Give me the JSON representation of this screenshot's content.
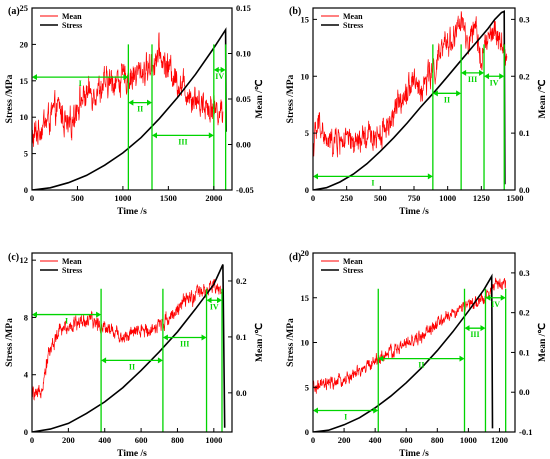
{
  "figure": {
    "style": {
      "mean_color": "#ff0000",
      "stress_color": "#000000",
      "marker_color": "#00d400"
    },
    "legend": {
      "mean": "Mean",
      "stress": "Stress"
    }
  },
  "chart_data": [
    {
      "panel": "(a)",
      "type": "line",
      "xlabel": "Time /s",
      "ylabel_left": "Stress /MPa",
      "ylabel_right": "Mean /℃",
      "xlim": [
        0,
        2200
      ],
      "ylim_left": [
        0,
        25
      ],
      "ylim_right": [
        -0.05,
        0.15
      ],
      "xticks": [
        0,
        500,
        1000,
        1500,
        2000
      ],
      "yticks_left": [
        0,
        5,
        10,
        15,
        20,
        25
      ],
      "yticks_right": [
        -0.05,
        0.0,
        0.05,
        0.1,
        0.15
      ],
      "yticks_right_labels": [
        "-0.05",
        "0.00",
        "0.05",
        "0.10",
        "0.15"
      ],
      "legend_position": "top-left",
      "series": [
        {
          "name": "Mean",
          "axis": "right",
          "x": [
            0,
            100,
            200,
            300,
            400,
            500,
            600,
            700,
            800,
            900,
            1000,
            1100,
            1200,
            1300,
            1400,
            1450,
            1500,
            1600,
            1700,
            1800,
            1900,
            2000,
            2100
          ],
          "y": [
            0.005,
            0.02,
            0.03,
            0.04,
            0.015,
            0.045,
            0.055,
            0.06,
            0.065,
            0.07,
            0.072,
            0.075,
            0.08,
            0.085,
            0.1,
            0.09,
            0.085,
            0.07,
            0.06,
            0.05,
            0.045,
            0.04,
            0.035
          ],
          "noise": 0.012
        },
        {
          "name": "Stress",
          "axis": "left",
          "x": [
            0,
            200,
            400,
            600,
            800,
            1000,
            1200,
            1400,
            1600,
            1800,
            2000,
            2130,
            2135
          ],
          "y": [
            0,
            0.3,
            1.0,
            2.0,
            3.4,
            5.1,
            7.2,
            9.8,
            12.7,
            15.9,
            19.5,
            22.0,
            8.0
          ]
        }
      ],
      "markers": [
        {
          "x": 1060,
          "stage": "I",
          "span": [
            0,
            1060
          ],
          "level": 15.5
        },
        {
          "x": 1320,
          "stage": "II",
          "span": [
            1060,
            1320
          ],
          "level": 12.0
        },
        {
          "x": 2000,
          "stage": "III",
          "span": [
            1320,
            2000
          ],
          "level": 7.5
        },
        {
          "x": 2130,
          "stage": "IV",
          "span": [
            2000,
            2130
          ],
          "level": 16.5
        }
      ]
    },
    {
      "panel": "(b)",
      "type": "line",
      "xlabel": "Time /s",
      "ylabel_left": "Stress /MPa",
      "ylabel_right": "Mean /℃",
      "xlim": [
        0,
        1500
      ],
      "ylim_left": [
        0,
        16
      ],
      "ylim_right": [
        0,
        0.32
      ],
      "xticks": [
        0,
        250,
        500,
        750,
        1000,
        1250,
        1500
      ],
      "yticks_left": [
        0,
        5,
        10,
        15
      ],
      "yticks_right": [
        0.0,
        0.1,
        0.2,
        0.3
      ],
      "yticks_right_labels": [
        "0.0",
        "0.1",
        "0.2",
        "0.3"
      ],
      "legend_position": "top-left",
      "series": [
        {
          "name": "Mean",
          "axis": "right",
          "x": [
            0,
            50,
            100,
            200,
            300,
            400,
            500,
            600,
            650,
            700,
            750,
            800,
            850,
            900,
            950,
            1000,
            1050,
            1100,
            1150,
            1200,
            1250,
            1300,
            1350,
            1400,
            1440
          ],
          "y": [
            0.08,
            0.12,
            0.08,
            0.09,
            0.08,
            0.09,
            0.1,
            0.13,
            0.16,
            0.18,
            0.2,
            0.17,
            0.2,
            0.21,
            0.24,
            0.26,
            0.27,
            0.3,
            0.25,
            0.28,
            0.24,
            0.26,
            0.28,
            0.25,
            0.23
          ],
          "noise": 0.018
        },
        {
          "name": "Stress",
          "axis": "left",
          "x": [
            0,
            100,
            200,
            300,
            400,
            500,
            600,
            700,
            800,
            900,
            1000,
            1100,
            1200,
            1300,
            1350,
            1400,
            1420,
            1425
          ],
          "y": [
            0,
            0.2,
            0.7,
            1.4,
            2.3,
            3.4,
            4.6,
            5.9,
            7.3,
            8.6,
            10.0,
            11.4,
            12.8,
            14.2,
            15.0,
            15.6,
            15.7,
            0.5
          ]
        }
      ],
      "markers": [
        {
          "x": 890,
          "stage": "I",
          "span": [
            0,
            890
          ],
          "level": 1.2
        },
        {
          "x": 1100,
          "stage": "II",
          "span": [
            890,
            1100
          ],
          "level": 8.5
        },
        {
          "x": 1270,
          "stage": "III",
          "span": [
            1100,
            1270
          ],
          "level": 10.3
        },
        {
          "x": 1420,
          "stage": "IV",
          "span": [
            1270,
            1420
          ],
          "level": 10.0
        }
      ]
    },
    {
      "panel": "(c)",
      "type": "line",
      "xlabel": "Time /s",
      "ylabel_left": "Stress /MPa",
      "ylabel_right": "Mean /℃",
      "xlim": [
        0,
        1100
      ],
      "ylim_left": [
        0,
        12.5
      ],
      "ylim_right": [
        -0.07,
        0.25
      ],
      "xticks": [
        0,
        200,
        400,
        600,
        800,
        1000
      ],
      "yticks_left": [
        0,
        4,
        8,
        12
      ],
      "yticks_right": [
        0.0,
        0.1,
        0.2
      ],
      "yticks_right_labels": [
        "0.0",
        "0.1",
        "0.2"
      ],
      "legend_position": "top-left",
      "series": [
        {
          "name": "Mean",
          "axis": "right",
          "x": [
            0,
            30,
            60,
            90,
            120,
            150,
            200,
            250,
            300,
            350,
            400,
            450,
            500,
            550,
            600,
            650,
            700,
            750,
            800,
            850,
            900,
            950,
            1000,
            1040
          ],
          "y": [
            0.0,
            -0.01,
            0.02,
            0.07,
            0.09,
            0.11,
            0.12,
            0.125,
            0.13,
            0.125,
            0.12,
            0.11,
            0.1,
            0.105,
            0.11,
            0.115,
            0.12,
            0.135,
            0.15,
            0.165,
            0.175,
            0.18,
            0.19,
            0.18
          ],
          "noise": 0.01
        },
        {
          "name": "Stress",
          "axis": "left",
          "x": [
            0,
            100,
            200,
            300,
            400,
            500,
            600,
            700,
            800,
            900,
            1000,
            1050,
            1060
          ],
          "y": [
            0,
            0.2,
            0.6,
            1.3,
            2.1,
            3.1,
            4.3,
            5.6,
            7.0,
            8.6,
            10.3,
            11.7,
            0.3
          ]
        }
      ],
      "markers": [
        {
          "x": 380,
          "stage": "I",
          "span": [
            0,
            380
          ],
          "level": 8.2
        },
        {
          "x": 720,
          "stage": "II",
          "span": [
            380,
            720
          ],
          "level": 5.0
        },
        {
          "x": 960,
          "stage": "III",
          "span": [
            720,
            960
          ],
          "level": 6.6
        },
        {
          "x": 1045,
          "stage": "IV",
          "span": [
            960,
            1045
          ],
          "level": 9.2
        }
      ]
    },
    {
      "panel": "(d)",
      "type": "line",
      "xlabel": "Time /s",
      "ylabel_left": "Stress /MPa",
      "ylabel_right": "Mean /℃",
      "xlim": [
        0,
        1300
      ],
      "ylim_left": [
        0,
        20
      ],
      "ylim_right": [
        -0.1,
        0.35
      ],
      "xticks": [
        0,
        200,
        400,
        600,
        800,
        1000,
        1200
      ],
      "yticks_left": [
        0,
        5,
        10,
        15,
        20
      ],
      "yticks_right": [
        -0.1,
        0.0,
        0.1,
        0.2,
        0.3
      ],
      "yticks_right_labels": [
        "-0.1",
        "0.0",
        "0.1",
        "0.2",
        "0.3"
      ],
      "legend_position": "top-left",
      "series": [
        {
          "name": "Mean",
          "axis": "right",
          "x": [
            0,
            100,
            200,
            300,
            400,
            500,
            600,
            700,
            800,
            900,
            1000,
            1050,
            1100,
            1150,
            1200,
            1240
          ],
          "y": [
            0.01,
            0.02,
            0.03,
            0.05,
            0.08,
            0.1,
            0.12,
            0.14,
            0.17,
            0.2,
            0.22,
            0.22,
            0.24,
            0.26,
            0.27,
            0.28
          ],
          "noise": 0.012
        },
        {
          "name": "Stress",
          "axis": "left",
          "x": [
            0,
            100,
            200,
            300,
            400,
            500,
            600,
            700,
            800,
            900,
            1000,
            1100,
            1150,
            1155
          ],
          "y": [
            0,
            0.2,
            0.8,
            1.6,
            2.7,
            4.0,
            5.5,
            7.2,
            9.1,
            11.2,
            13.5,
            15.9,
            17.4,
            0.4
          ]
        }
      ],
      "markers": [
        {
          "x": 420,
          "stage": "I",
          "span": [
            0,
            420
          ],
          "level": 2.4
        },
        {
          "x": 975,
          "stage": "II",
          "span": [
            420,
            975
          ],
          "level": 8.2
        },
        {
          "x": 1110,
          "stage": "III",
          "span": [
            975,
            1110
          ],
          "level": 11.6
        },
        {
          "x": 1240,
          "stage": "IV",
          "span": [
            1110,
            1240
          ],
          "level": 15.0
        }
      ]
    }
  ]
}
